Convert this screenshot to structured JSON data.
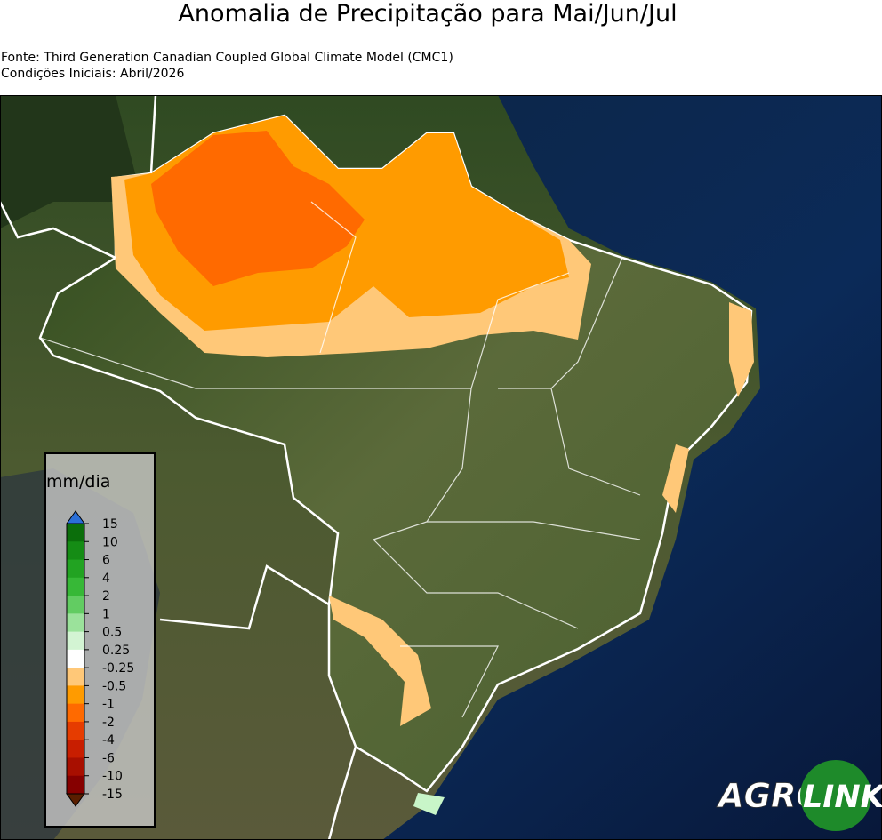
{
  "title": "Anomalia de Precipitação para Mai/Jun/Jul",
  "source": "Fonte: Third Generation Canadian Coupled Global Climate Model (CMC1)",
  "initial_conditions": "Condições Iniciais: Abril/2026",
  "colorbar": {
    "label": "mm/dia",
    "ticks": [
      15,
      10,
      6,
      4,
      2,
      1,
      0.5,
      0.25,
      -0.25,
      -0.5,
      -1,
      -2,
      -4,
      -6,
      -10,
      -15
    ],
    "colors": [
      "#0b6e0b",
      "#158c15",
      "#22a322",
      "#37b837",
      "#62cc62",
      "#9be29b",
      "#d3f4d3",
      "#ffffff",
      "#ffc878",
      "#ff9b00",
      "#ff6a00",
      "#e63c00",
      "#c81e00",
      "#a80f00",
      "#860000"
    ],
    "extend_colors": [
      "#2b6fd8",
      "#5a1e00"
    ]
  },
  "logo": {
    "left": "AGRO",
    "right": "LINK"
  }
}
